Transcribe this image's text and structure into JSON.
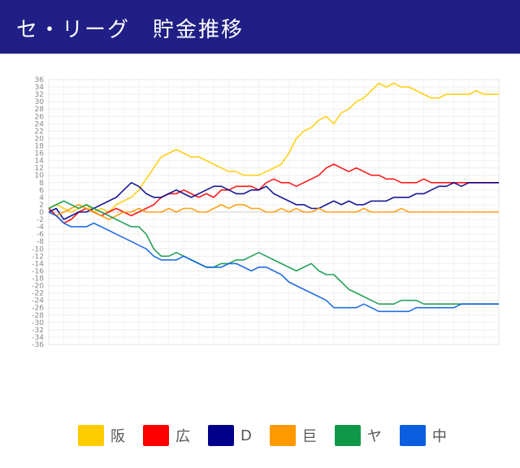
{
  "header": {
    "title": "セ・リーグ　貯金推移"
  },
  "chart_data": {
    "type": "line",
    "title": "",
    "xlabel": "",
    "ylabel": "",
    "ylim": [
      -36,
      36
    ],
    "ytick_step": 2,
    "grid": true,
    "legend_position": "bottom",
    "x": [
      0,
      1,
      2,
      3,
      4,
      5,
      6,
      7,
      8,
      9,
      10,
      11,
      12,
      13,
      14,
      15,
      16,
      17,
      18,
      19,
      20,
      21,
      22,
      23,
      24,
      25,
      26,
      27,
      28,
      29,
      30,
      31,
      32,
      33,
      34,
      35,
      36,
      37,
      38,
      39,
      40,
      41,
      42,
      43,
      44,
      45,
      46,
      47,
      48,
      49,
      50,
      51,
      52,
      53,
      54,
      55,
      56,
      57,
      58,
      59,
      60
    ],
    "series": [
      {
        "name": "阪",
        "color": "#ffcc00",
        "values": [
          1,
          2,
          1,
          0,
          1,
          2,
          0,
          1,
          0,
          2,
          3,
          4,
          6,
          9,
          12,
          15,
          16,
          17,
          16,
          15,
          15,
          14,
          13,
          12,
          11,
          11,
          10,
          10,
          10,
          11,
          12,
          13,
          16,
          20,
          22,
          23,
          25,
          26,
          24,
          27,
          28,
          30,
          31,
          33,
          35,
          34,
          35,
          34,
          34,
          33,
          32,
          31,
          31,
          32,
          32,
          32,
          32,
          33,
          32,
          32,
          32
        ]
      },
      {
        "name": "広",
        "color": "#ff0000",
        "values": [
          1,
          -1,
          -3,
          -2,
          0,
          1,
          0,
          -1,
          0,
          1,
          0,
          -1,
          0,
          1,
          2,
          4,
          5,
          5,
          6,
          5,
          4,
          5,
          4,
          6,
          6,
          7,
          7,
          7,
          6,
          8,
          9,
          8,
          8,
          7,
          8,
          9,
          10,
          12,
          13,
          12,
          11,
          12,
          11,
          10,
          10,
          9,
          9,
          8,
          8,
          8,
          9,
          8,
          8,
          8,
          8,
          8,
          8,
          8,
          8,
          8,
          8
        ]
      },
      {
        "name": "D",
        "color": "#00008b",
        "values": [
          0,
          1,
          -2,
          -1,
          0,
          0,
          1,
          2,
          3,
          4,
          6,
          8,
          7,
          5,
          4,
          4,
          5,
          6,
          5,
          4,
          5,
          6,
          7,
          7,
          6,
          5,
          5,
          6,
          6,
          7,
          5,
          4,
          3,
          2,
          2,
          1,
          1,
          2,
          3,
          2,
          3,
          2,
          2,
          3,
          3,
          3,
          4,
          4,
          4,
          5,
          5,
          6,
          7,
          7,
          8,
          7,
          8,
          8,
          8,
          8,
          8
        ]
      },
      {
        "name": "巨",
        "color": "#ff9900",
        "values": [
          0,
          -1,
          0,
          1,
          2,
          1,
          0,
          -1,
          -2,
          -1,
          0,
          0,
          1,
          0,
          0,
          0,
          1,
          0,
          1,
          1,
          0,
          0,
          1,
          2,
          1,
          2,
          2,
          1,
          1,
          0,
          0,
          1,
          0,
          1,
          0,
          0,
          1,
          0,
          0,
          0,
          0,
          0,
          1,
          0,
          0,
          0,
          0,
          1,
          0,
          0,
          0,
          0,
          0,
          0,
          0,
          0,
          0,
          0,
          0,
          0,
          0
        ]
      },
      {
        "name": "ヤ",
        "color": "#109849",
        "values": [
          1,
          2,
          3,
          2,
          1,
          2,
          1,
          0,
          -1,
          -2,
          -3,
          -4,
          -4,
          -6,
          -10,
          -12,
          -12,
          -11,
          -12,
          -13,
          -14,
          -15,
          -15,
          -14,
          -14,
          -13,
          -13,
          -12,
          -11,
          -12,
          -13,
          -14,
          -15,
          -16,
          -15,
          -14,
          -16,
          -17,
          -17,
          -19,
          -21,
          -22,
          -23,
          -24,
          -25,
          -25,
          -25,
          -24,
          -24,
          -24,
          -25,
          -25,
          -25,
          -25,
          -25,
          -25,
          -25,
          -25,
          -25,
          -25,
          -25
        ]
      },
      {
        "name": "中",
        "color": "#0a5fe0",
        "values": [
          0,
          -1,
          -3,
          -4,
          -4,
          -4,
          -3,
          -4,
          -5,
          -6,
          -7,
          -8,
          -9,
          -10,
          -12,
          -13,
          -13,
          -13,
          -12,
          -13,
          -14,
          -15,
          -15,
          -15,
          -14,
          -14,
          -15,
          -16,
          -15,
          -15,
          -16,
          -17,
          -19,
          -20,
          -21,
          -22,
          -23,
          -24,
          -26,
          -26,
          -26,
          -26,
          -25,
          -26,
          -27,
          -27,
          -27,
          -27,
          -27,
          -26,
          -26,
          -26,
          -26,
          -26,
          -26,
          -25,
          -25,
          -25,
          -25,
          -25,
          -25
        ]
      }
    ]
  }
}
